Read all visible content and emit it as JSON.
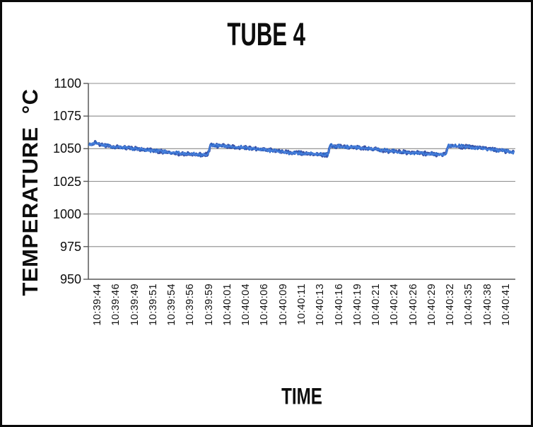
{
  "frame": {
    "background": "#ffffff",
    "border_color": "#0a0a0a"
  },
  "chart_data": {
    "type": "line",
    "title": "TUBE 4",
    "xlabel": "TIME",
    "ylabel": "TEMPERATURE  °C",
    "ylim": [
      950,
      1100
    ],
    "ytick_step": 25,
    "yticks": [
      1100,
      1075,
      1050,
      1025,
      1000,
      975,
      950
    ],
    "xticklabels": [
      "10:39:44",
      "10:39:46",
      "10:39:49",
      "10:39:51",
      "10:39:54",
      "10:39:56",
      "10:39:59",
      "10:40:01",
      "10:40:04",
      "10:40:06",
      "10:40:09",
      "10:40:11",
      "10:40:13",
      "10:40:16",
      "10:40:19",
      "10:40:21",
      "10:40:24",
      "10:40:26",
      "10:40:29",
      "10:40:32",
      "10:40:35",
      "10:40:38",
      "10:40:41"
    ],
    "xtick_rotation_degrees": 90,
    "grid": true,
    "legend_position": "none",
    "grid_color": "#8c8c8c",
    "axis_color": "#595959",
    "series": [
      {
        "name": "TUBE 4",
        "color": "#2e6ac9",
        "shadow_color": "#27409b",
        "highlight_color": "#4f86e2",
        "noise_amplitude": 1.7,
        "time_span_seconds": 59,
        "sampled_points": [
          {
            "time": "10:39:44",
            "temp": 1053
          },
          {
            "time": "10:39:46",
            "temp": 1053
          },
          {
            "time": "10:39:49",
            "temp": 1051
          },
          {
            "time": "10:39:51",
            "temp": 1050
          },
          {
            "time": "10:39:54",
            "temp": 1048
          },
          {
            "time": "10:39:56",
            "temp": 1046
          },
          {
            "time": "10:39:59",
            "temp": 1046
          },
          {
            "time": "10:40:01",
            "temp": 1053
          },
          {
            "time": "10:40:04",
            "temp": 1052
          },
          {
            "time": "10:40:06",
            "temp": 1050
          },
          {
            "time": "10:40:09",
            "temp": 1049
          },
          {
            "time": "10:40:11",
            "temp": 1047
          },
          {
            "time": "10:40:13",
            "temp": 1046
          },
          {
            "time": "10:40:16",
            "temp": 1046
          },
          {
            "time": "10:40:19",
            "temp": 1052
          },
          {
            "time": "10:40:21",
            "temp": 1051
          },
          {
            "time": "10:40:24",
            "temp": 1049
          },
          {
            "time": "10:40:26",
            "temp": 1048
          },
          {
            "time": "10:40:29",
            "temp": 1047
          },
          {
            "time": "10:40:32",
            "temp": 1046
          },
          {
            "time": "10:40:35",
            "temp": 1052
          },
          {
            "time": "10:40:38",
            "temp": 1051
          },
          {
            "time": "10:40:41",
            "temp": 1049
          }
        ],
        "baseline_keypoints": [
          [
            0,
            1053.2
          ],
          [
            0.8,
            1054.2
          ],
          [
            3,
            1051.8
          ],
          [
            6,
            1050.5
          ],
          [
            9,
            1048.5
          ],
          [
            12,
            1046.5
          ],
          [
            16.5,
            1045.3
          ],
          [
            16.9,
            1052.8
          ],
          [
            19,
            1052.0
          ],
          [
            23,
            1050.0
          ],
          [
            27,
            1047.5
          ],
          [
            33.1,
            1045.3
          ],
          [
            33.5,
            1052.3
          ],
          [
            35.5,
            1051.5
          ],
          [
            39,
            1050.0
          ],
          [
            43,
            1047.5
          ],
          [
            49.5,
            1045.3
          ],
          [
            49.9,
            1052.3
          ],
          [
            51.5,
            1051.8
          ],
          [
            54.5,
            1050.3
          ],
          [
            58.2,
            1048.0
          ],
          [
            59,
            1046.8
          ]
        ]
      }
    ]
  }
}
